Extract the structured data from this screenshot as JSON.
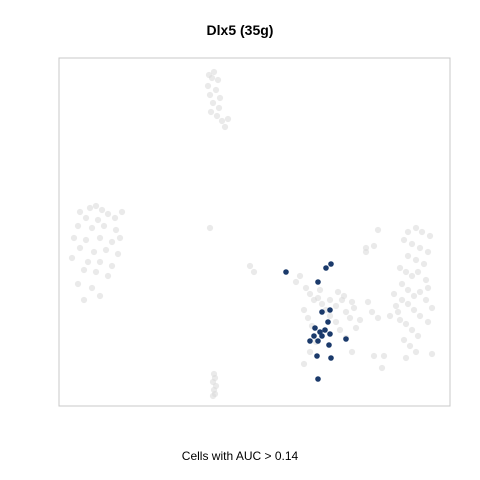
{
  "chart_data": {
    "type": "scatter",
    "title": "Dlx5 (35g)",
    "caption": "Cells with AUC > 0.14",
    "xlabel": "",
    "ylabel": "",
    "grid": false,
    "axes_visible": false,
    "colors": {
      "background_points": "#d9d9d9",
      "highlight_points": "#1b3a6b",
      "frame": "#c8c8c8"
    },
    "series": [
      {
        "role": "background",
        "points": [
          [
            209,
            75
          ],
          [
            214,
            72
          ],
          [
            212,
            78
          ],
          [
            218,
            80
          ],
          [
            208,
            86
          ],
          [
            216,
            90
          ],
          [
            210,
            95
          ],
          [
            220,
            98
          ],
          [
            213,
            103
          ],
          [
            219,
            108
          ],
          [
            211,
            112
          ],
          [
            217,
            116
          ],
          [
            222,
            121
          ],
          [
            228,
            119
          ],
          [
            225,
            127
          ],
          [
            80,
            212
          ],
          [
            90,
            208
          ],
          [
            96,
            206
          ],
          [
            102,
            210
          ],
          [
            86,
            218
          ],
          [
            98,
            220
          ],
          [
            108,
            214
          ],
          [
            115,
            218
          ],
          [
            78,
            226
          ],
          [
            92,
            228
          ],
          [
            104,
            226
          ],
          [
            116,
            230
          ],
          [
            74,
            238
          ],
          [
            86,
            240
          ],
          [
            100,
            238
          ],
          [
            112,
            242
          ],
          [
            80,
            248
          ],
          [
            94,
            252
          ],
          [
            106,
            250
          ],
          [
            118,
            254
          ],
          [
            72,
            258
          ],
          [
            88,
            262
          ],
          [
            100,
            262
          ],
          [
            112,
            266
          ],
          [
            84,
            270
          ],
          [
            96,
            272
          ],
          [
            108,
            276
          ],
          [
            78,
            284
          ],
          [
            92,
            288
          ],
          [
            84,
            300
          ],
          [
            100,
            296
          ],
          [
            122,
            212
          ],
          [
            120,
            238
          ],
          [
            210,
            228
          ],
          [
            250,
            266
          ],
          [
            254,
            272
          ],
          [
            296,
            282
          ],
          [
            300,
            276
          ],
          [
            306,
            288
          ],
          [
            310,
            294
          ],
          [
            314,
            300
          ],
          [
            318,
            298
          ],
          [
            322,
            304
          ],
          [
            326,
            310
          ],
          [
            330,
            316
          ],
          [
            336,
            306
          ],
          [
            342,
            300
          ],
          [
            346,
            312
          ],
          [
            350,
            318
          ],
          [
            354,
            308
          ],
          [
            336,
            322
          ],
          [
            340,
            330
          ],
          [
            346,
            338
          ],
          [
            304,
            310
          ],
          [
            308,
            318
          ],
          [
            312,
            326
          ],
          [
            330,
            300
          ],
          [
            338,
            292
          ],
          [
            344,
            296
          ],
          [
            352,
            302
          ],
          [
            356,
            328
          ],
          [
            360,
            320
          ],
          [
            368,
            302
          ],
          [
            372,
            312
          ],
          [
            378,
            318
          ],
          [
            366,
            248
          ],
          [
            374,
            246
          ],
          [
            374,
            356
          ],
          [
            384,
            356
          ],
          [
            382,
            368
          ],
          [
            304,
            364
          ],
          [
            310,
            352
          ],
          [
            352,
            352
          ],
          [
            366,
            252
          ],
          [
            316,
            342
          ],
          [
            320,
            290
          ],
          [
            378,
            230
          ],
          [
            408,
            232
          ],
          [
            416,
            228
          ],
          [
            422,
            232
          ],
          [
            430,
            236
          ],
          [
            404,
            240
          ],
          [
            412,
            244
          ],
          [
            420,
            248
          ],
          [
            428,
            252
          ],
          [
            408,
            256
          ],
          [
            416,
            260
          ],
          [
            424,
            264
          ],
          [
            400,
            268
          ],
          [
            406,
            272
          ],
          [
            412,
            276
          ],
          [
            418,
            272
          ],
          [
            426,
            280
          ],
          [
            402,
            284
          ],
          [
            408,
            290
          ],
          [
            414,
            296
          ],
          [
            420,
            292
          ],
          [
            428,
            288
          ],
          [
            402,
            300
          ],
          [
            408,
            304
          ],
          [
            414,
            310
          ],
          [
            420,
            316
          ],
          [
            428,
            322
          ],
          [
            396,
            306
          ],
          [
            390,
            316
          ],
          [
            400,
            320
          ],
          [
            406,
            324
          ],
          [
            412,
            330
          ],
          [
            418,
            336
          ],
          [
            404,
            340
          ],
          [
            410,
            346
          ],
          [
            416,
            352
          ],
          [
            406,
            358
          ],
          [
            432,
            354
          ],
          [
            394,
            294
          ],
          [
            398,
            312
          ],
          [
            426,
            300
          ],
          [
            432,
            308
          ],
          [
            214,
            374
          ],
          [
            215,
            378
          ],
          [
            213,
            382
          ],
          [
            216,
            386
          ],
          [
            214,
            390
          ],
          [
            215,
            394
          ],
          [
            213,
            396
          ]
        ]
      },
      {
        "role": "highlight",
        "label": "Cells with AUC > 0.14",
        "points": [
          [
            286,
            272
          ],
          [
            326,
            268
          ],
          [
            331,
            264
          ],
          [
            318,
            282
          ],
          [
            322,
            312
          ],
          [
            330,
            310
          ],
          [
            328,
            322
          ],
          [
            315,
            328
          ],
          [
            320,
            332
          ],
          [
            325,
            330
          ],
          [
            314,
            336
          ],
          [
            322,
            336
          ],
          [
            330,
            334
          ],
          [
            346,
            339
          ],
          [
            310,
            341
          ],
          [
            318,
            341
          ],
          [
            329,
            345
          ],
          [
            317,
            356
          ],
          [
            331,
            358
          ],
          [
            318,
            379
          ]
        ]
      }
    ]
  }
}
